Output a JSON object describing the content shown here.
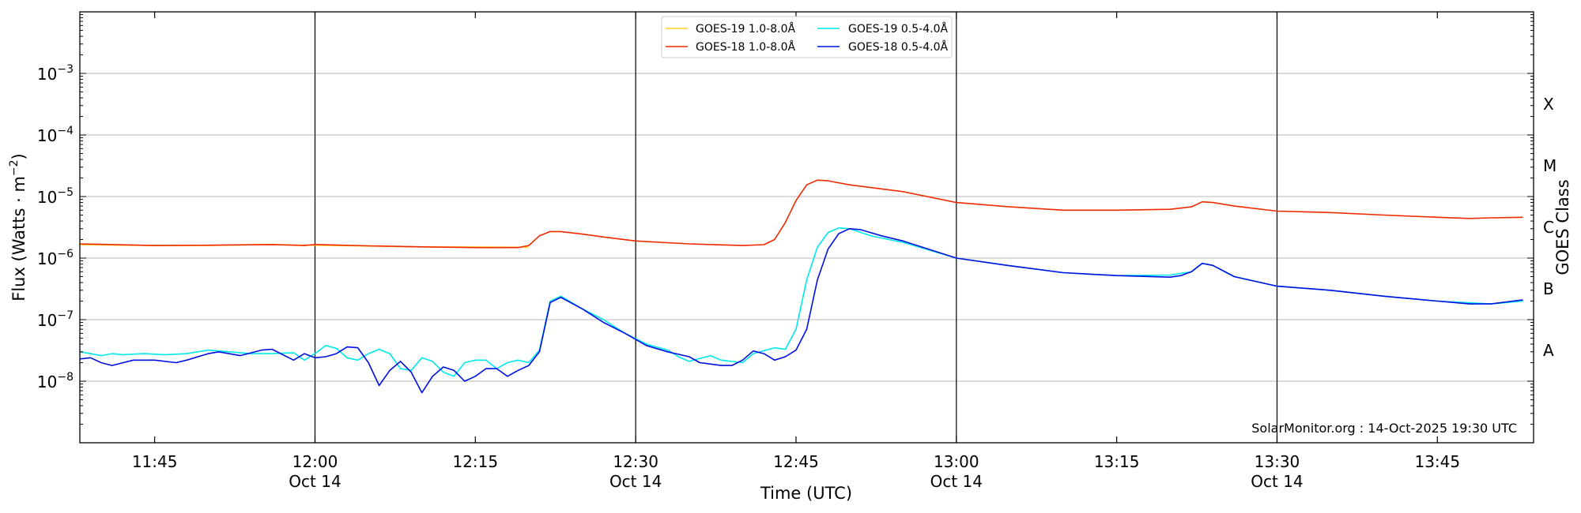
{
  "chart_data": {
    "type": "line",
    "xlabel": "Time (UTC)",
    "ylabel": "Flux (Watts · m",
    "ylabel_sup": "−2",
    "ylabel_close": ")",
    "ylabel_right": "GOES Class",
    "ylim": [
      1e-09,
      0.01
    ],
    "yscale": "log",
    "xlim": [
      "11:38",
      "13:54"
    ],
    "x_ticks": [
      {
        "time": "11:45",
        "label": "11:45",
        "sub": ""
      },
      {
        "time": "12:00",
        "label": "12:00",
        "sub": "Oct 14"
      },
      {
        "time": "12:15",
        "label": "12:15",
        "sub": ""
      },
      {
        "time": "12:30",
        "label": "12:30",
        "sub": "Oct 14"
      },
      {
        "time": "12:45",
        "label": "12:45",
        "sub": ""
      },
      {
        "time": "13:00",
        "label": "13:00",
        "sub": "Oct 14"
      },
      {
        "time": "13:15",
        "label": "13:15",
        "sub": ""
      },
      {
        "time": "13:30",
        "label": "13:30",
        "sub": "Oct 14"
      },
      {
        "time": "13:45",
        "label": "13:45",
        "sub": ""
      }
    ],
    "vlines": [
      "12:00",
      "12:30",
      "13:00",
      "13:30"
    ],
    "y_ticks": [
      {
        "value": 1e-08,
        "label": "10",
        "exp": "−8"
      },
      {
        "value": 1e-07,
        "label": "10",
        "exp": "−7"
      },
      {
        "value": 1e-06,
        "label": "10",
        "exp": "−6"
      },
      {
        "value": 1e-05,
        "label": "10",
        "exp": "−5"
      },
      {
        "value": 0.0001,
        "label": "10",
        "exp": "−4"
      },
      {
        "value": 0.001,
        "label": "10",
        "exp": "−3"
      }
    ],
    "goes_classes": [
      {
        "label": "A",
        "value": 3.16e-08
      },
      {
        "label": "B",
        "value": 3.16e-07
      },
      {
        "label": "C",
        "value": 3.16e-06
      },
      {
        "label": "M",
        "value": 3.16e-05
      },
      {
        "label": "X",
        "value": 0.000316
      }
    ],
    "grid": "horizontal",
    "legend_position": "top-center",
    "credit": "SolarMonitor.org : 14-Oct-2025 19:30 UTC",
    "series": [
      {
        "name": "GOES-19 1.0-8.0Å",
        "color": "#ffd21f",
        "points": [
          [
            "11:38",
            1.65e-06
          ],
          [
            "11:45",
            1.6e-06
          ],
          [
            "11:50",
            1.6e-06
          ],
          [
            "11:55",
            1.65e-06
          ],
          [
            "12:00",
            1.62e-06
          ],
          [
            "12:10",
            1.52e-06
          ],
          [
            "12:20",
            1.5e-06
          ]
        ]
      },
      {
        "name": "GOES-18 1.0-8.0Å",
        "color": "#ee2a00",
        "points": [
          [
            "11:38",
            1.7e-06
          ],
          [
            "11:45",
            1.6e-06
          ],
          [
            "11:50",
            1.62e-06
          ],
          [
            "11:56",
            1.66e-06
          ],
          [
            "11:59",
            1.6e-06
          ],
          [
            "12:00",
            1.66e-06
          ],
          [
            "12:05",
            1.58e-06
          ],
          [
            "12:10",
            1.52e-06
          ],
          [
            "12:15",
            1.48e-06
          ],
          [
            "12:19",
            1.48e-06
          ],
          [
            "12:20",
            1.6e-06
          ],
          [
            "12:21",
            2.3e-06
          ],
          [
            "12:22",
            2.7e-06
          ],
          [
            "12:23",
            2.7e-06
          ],
          [
            "12:25",
            2.45e-06
          ],
          [
            "12:27",
            2.2e-06
          ],
          [
            "12:30",
            1.9e-06
          ],
          [
            "12:35",
            1.7e-06
          ],
          [
            "12:40",
            1.6e-06
          ],
          [
            "12:42",
            1.65e-06
          ],
          [
            "12:43",
            2e-06
          ],
          [
            "12:44",
            3.8e-06
          ],
          [
            "12:45",
            8.6e-06
          ],
          [
            "12:46",
            1.55e-05
          ],
          [
            "12:47",
            1.85e-05
          ],
          [
            "12:48",
            1.8e-05
          ],
          [
            "12:50",
            1.55e-05
          ],
          [
            "12:55",
            1.2e-05
          ],
          [
            "13:00",
            8e-06
          ],
          [
            "13:05",
            6.8e-06
          ],
          [
            "13:10",
            6e-06
          ],
          [
            "13:15",
            6e-06
          ],
          [
            "13:20",
            6.2e-06
          ],
          [
            "13:22",
            6.8e-06
          ],
          [
            "13:23",
            8.2e-06
          ],
          [
            "13:24",
            8e-06
          ],
          [
            "13:26",
            7e-06
          ],
          [
            "13:30",
            5.8e-06
          ],
          [
            "13:35",
            5.5e-06
          ],
          [
            "13:40",
            5e-06
          ],
          [
            "13:45",
            4.6e-06
          ],
          [
            "13:48",
            4.4e-06
          ],
          [
            "13:50",
            4.5e-06
          ],
          [
            "13:53",
            4.6e-06
          ]
        ]
      },
      {
        "name": "GOES-19 0.5-4.0Å",
        "color": "#00e8e8",
        "points": [
          [
            "11:38",
            3e-08
          ],
          [
            "11:39",
            2.8e-08
          ],
          [
            "11:40",
            2.6e-08
          ],
          [
            "11:41",
            2.8e-08
          ],
          [
            "11:42",
            2.7e-08
          ],
          [
            "11:44",
            2.8e-08
          ],
          [
            "11:46",
            2.7e-08
          ],
          [
            "11:48",
            2.8e-08
          ],
          [
            "11:50",
            3.2e-08
          ],
          [
            "11:52",
            3e-08
          ],
          [
            "11:54",
            2.8e-08
          ],
          [
            "11:56",
            2.8e-08
          ],
          [
            "11:58",
            2.9e-08
          ],
          [
            "11:59",
            2.2e-08
          ],
          [
            "12:00",
            2.8e-08
          ],
          [
            "12:01",
            3.8e-08
          ],
          [
            "12:02",
            3.4e-08
          ],
          [
            "12:03",
            2.4e-08
          ],
          [
            "12:04",
            2.2e-08
          ],
          [
            "12:05",
            2.8e-08
          ],
          [
            "12:06",
            3.3e-08
          ],
          [
            "12:07",
            2.8e-08
          ],
          [
            "12:08",
            1.6e-08
          ],
          [
            "12:09",
            1.5e-08
          ],
          [
            "12:10",
            2.4e-08
          ],
          [
            "12:11",
            2.1e-08
          ],
          [
            "12:12",
            1.4e-08
          ],
          [
            "12:13",
            1.2e-08
          ],
          [
            "12:14",
            2e-08
          ],
          [
            "12:15",
            2.2e-08
          ],
          [
            "12:16",
            2.2e-08
          ],
          [
            "12:17",
            1.6e-08
          ],
          [
            "12:18",
            2e-08
          ],
          [
            "12:19",
            2.2e-08
          ],
          [
            "12:20",
            2e-08
          ],
          [
            "12:21",
            3.2e-08
          ],
          [
            "12:22",
            2e-07
          ],
          [
            "12:23",
            2.4e-07
          ],
          [
            "12:25",
            1.5e-07
          ],
          [
            "12:27",
            1e-07
          ],
          [
            "12:29",
            6e-08
          ],
          [
            "12:31",
            4e-08
          ],
          [
            "12:33",
            3.2e-08
          ],
          [
            "12:34",
            2.5e-08
          ],
          [
            "12:35",
            2.1e-08
          ],
          [
            "12:37",
            2.6e-08
          ],
          [
            "12:38",
            2.2e-08
          ],
          [
            "12:40",
            2e-08
          ],
          [
            "12:41",
            2.8e-08
          ],
          [
            "12:43",
            3.5e-08
          ],
          [
            "12:44",
            3.3e-08
          ],
          [
            "12:45",
            7e-08
          ],
          [
            "12:46",
            4.4e-07
          ],
          [
            "12:47",
            1.5e-06
          ],
          [
            "12:48",
            2.6e-06
          ],
          [
            "12:49",
            3.1e-06
          ],
          [
            "12:50",
            3e-06
          ],
          [
            "12:52",
            2.3e-06
          ],
          [
            "12:55",
            1.8e-06
          ],
          [
            "13:00",
            1e-06
          ],
          [
            "13:05",
            7.5e-07
          ],
          [
            "13:10",
            5.8e-07
          ],
          [
            "13:15",
            5.2e-07
          ],
          [
            "13:20",
            5.3e-07
          ],
          [
            "13:22",
            6e-07
          ],
          [
            "13:23",
            8.2e-07
          ],
          [
            "13:24",
            7.6e-07
          ],
          [
            "13:26",
            5e-07
          ],
          [
            "13:30",
            3.5e-07
          ],
          [
            "13:35",
            3e-07
          ],
          [
            "13:40",
            2.4e-07
          ],
          [
            "13:45",
            2e-07
          ],
          [
            "13:50",
            1.8e-07
          ],
          [
            "13:53",
            2e-07
          ]
        ]
      },
      {
        "name": "GOES-18 0.5-4.0Å",
        "color": "#0010e0",
        "points": [
          [
            "11:38",
            2.3e-08
          ],
          [
            "11:39",
            2.4e-08
          ],
          [
            "11:40",
            2e-08
          ],
          [
            "11:41",
            1.8e-08
          ],
          [
            "11:43",
            2.2e-08
          ],
          [
            "11:45",
            2.2e-08
          ],
          [
            "11:47",
            2e-08
          ],
          [
            "11:48",
            2.2e-08
          ],
          [
            "11:50",
            2.8e-08
          ],
          [
            "11:51",
            3e-08
          ],
          [
            "11:53",
            2.6e-08
          ],
          [
            "11:55",
            3.2e-08
          ],
          [
            "11:56",
            3.3e-08
          ],
          [
            "11:58",
            2.2e-08
          ],
          [
            "11:59",
            2.8e-08
          ],
          [
            "12:00",
            2.4e-08
          ],
          [
            "12:01",
            2.5e-08
          ],
          [
            "12:02",
            2.8e-08
          ],
          [
            "12:03",
            3.6e-08
          ],
          [
            "12:04",
            3.5e-08
          ],
          [
            "12:05",
            2e-08
          ],
          [
            "12:06",
            8.5e-09
          ],
          [
            "12:07",
            1.5e-08
          ],
          [
            "12:08",
            2.1e-08
          ],
          [
            "12:09",
            1.4e-08
          ],
          [
            "12:10",
            6.5e-09
          ],
          [
            "12:11",
            1.2e-08
          ],
          [
            "12:12",
            1.7e-08
          ],
          [
            "12:13",
            1.5e-08
          ],
          [
            "12:14",
            1e-08
          ],
          [
            "12:15",
            1.2e-08
          ],
          [
            "12:16",
            1.6e-08
          ],
          [
            "12:17",
            1.6e-08
          ],
          [
            "12:18",
            1.2e-08
          ],
          [
            "12:19",
            1.5e-08
          ],
          [
            "12:20",
            1.8e-08
          ],
          [
            "12:21",
            3e-08
          ],
          [
            "12:22",
            1.9e-07
          ],
          [
            "12:23",
            2.3e-07
          ],
          [
            "12:25",
            1.5e-07
          ],
          [
            "12:27",
            9e-08
          ],
          [
            "12:29",
            6e-08
          ],
          [
            "12:31",
            3.8e-08
          ],
          [
            "12:33",
            3e-08
          ],
          [
            "12:35",
            2.5e-08
          ],
          [
            "12:36",
            2e-08
          ],
          [
            "12:38",
            1.8e-08
          ],
          [
            "12:39",
            1.8e-08
          ],
          [
            "12:40",
            2.2e-08
          ],
          [
            "12:41",
            3.1e-08
          ],
          [
            "12:42",
            2.8e-08
          ],
          [
            "12:43",
            2.2e-08
          ],
          [
            "12:44",
            2.5e-08
          ],
          [
            "12:45",
            3.2e-08
          ],
          [
            "12:46",
            7e-08
          ],
          [
            "12:47",
            4.4e-07
          ],
          [
            "12:48",
            1.4e-06
          ],
          [
            "12:49",
            2.5e-06
          ],
          [
            "12:50",
            3e-06
          ],
          [
            "12:51",
            2.9e-06
          ],
          [
            "12:53",
            2.3e-06
          ],
          [
            "12:55",
            1.9e-06
          ],
          [
            "13:00",
            1e-06
          ],
          [
            "13:05",
            7.5e-07
          ],
          [
            "13:10",
            5.8e-07
          ],
          [
            "13:15",
            5.2e-07
          ],
          [
            "13:20",
            4.9e-07
          ],
          [
            "13:21",
            5.2e-07
          ],
          [
            "13:22",
            6e-07
          ],
          [
            "13:23",
            8.2e-07
          ],
          [
            "13:24",
            7.6e-07
          ],
          [
            "13:26",
            5e-07
          ],
          [
            "13:30",
            3.5e-07
          ],
          [
            "13:35",
            3e-07
          ],
          [
            "13:40",
            2.4e-07
          ],
          [
            "13:45",
            2e-07
          ],
          [
            "13:48",
            1.8e-07
          ],
          [
            "13:50",
            1.8e-07
          ],
          [
            "13:53",
            2.1e-07
          ]
        ]
      }
    ]
  }
}
